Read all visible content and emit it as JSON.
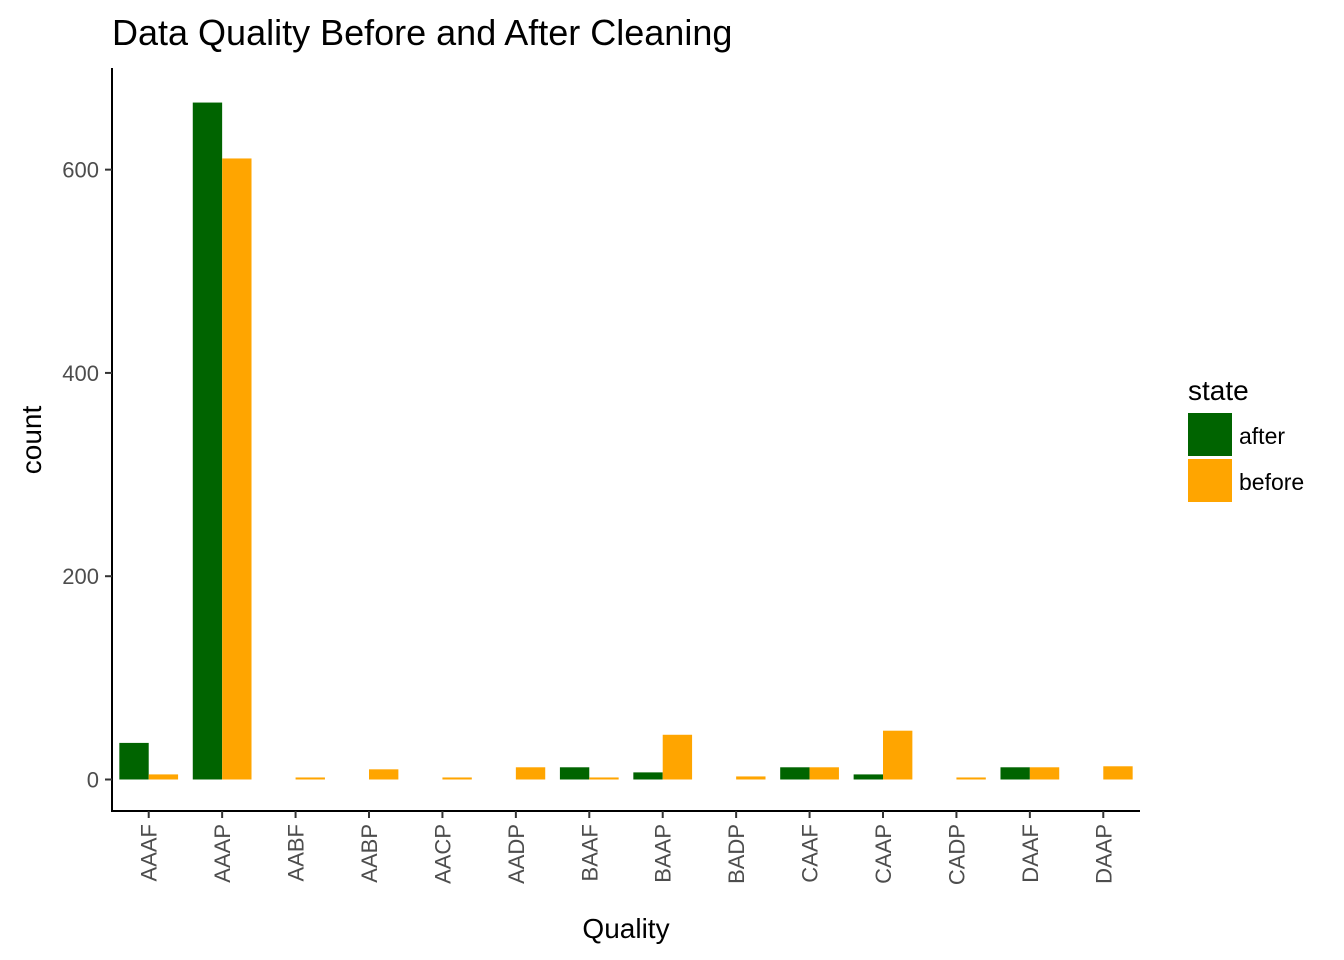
{
  "chart_data": {
    "type": "bar",
    "title": "Data Quality Before and After Cleaning",
    "xlabel": "Quality",
    "ylabel": "count",
    "categories": [
      "AAAF",
      "AAAP",
      "AABF",
      "AABP",
      "AACP",
      "AADP",
      "BAAF",
      "BAAP",
      "BADP",
      "CAAF",
      "CAAP",
      "CADP",
      "DAAF",
      "DAAP"
    ],
    "series": [
      {
        "name": "after",
        "color": "#006400",
        "values": [
          36,
          666,
          null,
          null,
          null,
          null,
          12,
          7,
          null,
          12,
          5,
          null,
          12,
          null
        ]
      },
      {
        "name": "before",
        "color": "#FFA500",
        "values": [
          5,
          611,
          2,
          10,
          2,
          12,
          2,
          44,
          3,
          12,
          48,
          2,
          12,
          13
        ]
      }
    ],
    "ylim": [
      -31,
      700
    ],
    "yticks": [
      0,
      200,
      400,
      600
    ],
    "grid": false,
    "legend": {
      "title": "state",
      "position": "right"
    }
  }
}
